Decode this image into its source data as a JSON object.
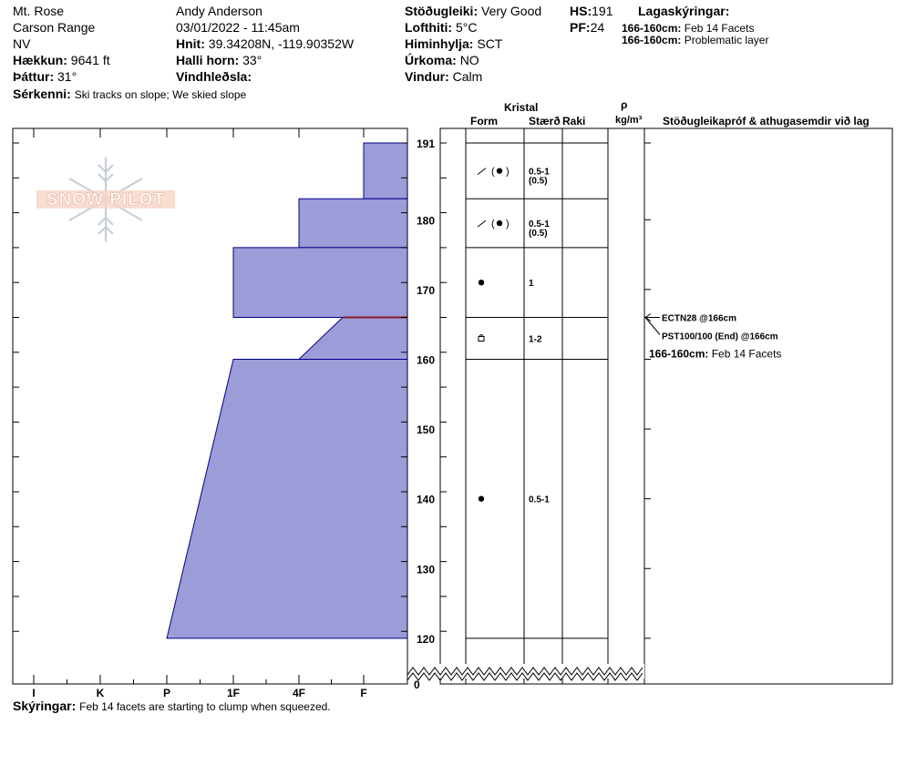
{
  "header": {
    "location": "Mt. Rose",
    "range": "Carson Range",
    "state": "NV",
    "elevation_label": "Hækkun:",
    "elevation": "9641 ft",
    "aspect_label": "Þáttur:",
    "aspect": "31°",
    "observer": "Andy Anderson",
    "datetime": "03/01/2022 - 11:45am",
    "coords_label": "Hnit:",
    "coords": "39.34208N, -119.90352W",
    "slope_label": "Halli horn:",
    "slope": "33°",
    "wind_loading_label": "Vindhleðsla:",
    "wind_loading": "",
    "stability_label": "Stöðugleiki:",
    "stability": "Very Good",
    "air_temp_label": "Lofthiti:",
    "air_temp": "5°C",
    "sky_label": "Himinhylja:",
    "sky": "SCT",
    "precip_label": "Úrkoma:",
    "precip": "NO",
    "wind_label": "Vindur:",
    "wind": "Calm",
    "hs_label": "HS:",
    "hs": "191",
    "pf_label": "PF:",
    "pf": "24",
    "features_label": "Sérkenni:",
    "features": "Ski tracks on slope; We skied slope",
    "layer_notes_label": "Lagaskýringar:",
    "layer_notes": [
      {
        "range": "166-160cm:",
        "text": "Feb 14 Facets"
      },
      {
        "range": "166-160cm:",
        "text": "Problematic layer"
      }
    ]
  },
  "columns": {
    "crystal": "Kristal",
    "form": "Form",
    "size": "Stærð",
    "moisture": "Raki",
    "rho": "ρ",
    "density_unit": "kg/m³",
    "tests": "Stöðugleikapróf & athugasemdir við lag"
  },
  "footer": {
    "notes_label": "Skýringar:",
    "notes": "Feb 14 facets are starting to clump when squeezed."
  },
  "colors": {
    "hardness_fill": "#9c9cd8",
    "hardness_stroke": "#00008b",
    "weak_layer": "#8b1a2a"
  },
  "chart_data": {
    "type": "snow-profile",
    "y_unit": "cm",
    "y_ticks": [
      191,
      180,
      170,
      160,
      150,
      140,
      130,
      120
    ],
    "y_break_label": "0",
    "hardness_scale": [
      "I",
      "K",
      "P",
      "1F",
      "4F",
      "F"
    ],
    "hardness_profile": [
      {
        "top": 191,
        "bottom": 183,
        "hardness": "F"
      },
      {
        "top": 183,
        "bottom": 176,
        "hardness": "4F-"
      },
      {
        "top": 176,
        "bottom": 166,
        "hardness": "1F-"
      },
      {
        "top": 166,
        "bottom": 160,
        "hardness_top": "F-",
        "hardness_bottom": "4F"
      },
      {
        "top": 160,
        "bottom": 120,
        "hardness_top": "1F-",
        "hardness_bottom": "P"
      }
    ],
    "weak_layer_depth": 166,
    "layers": [
      {
        "top": 191,
        "bottom": 183,
        "form": "decomposing / rounds",
        "size": "0.5-1",
        "size_note": "(0.5)"
      },
      {
        "top": 183,
        "bottom": 176,
        "form": "decomposing / rounds",
        "size": "0.5-1",
        "size_note": "(0.5)"
      },
      {
        "top": 176,
        "bottom": 166,
        "form": "rounds",
        "size": "1",
        "size_note": ""
      },
      {
        "top": 166,
        "bottom": 160,
        "form": "faceted rounds",
        "size": "1-2",
        "size_note": ""
      },
      {
        "top": 160,
        "bottom": 120,
        "form": "rounds",
        "size": "0.5-1",
        "size_note": ""
      }
    ],
    "tests": [
      {
        "label": "ECTN28 @166cm",
        "depth": 166
      },
      {
        "label": "PST100/100 (End) @166cm",
        "depth": 166
      }
    ],
    "layer_comment": {
      "range": "166-160cm:",
      "text": "Feb 14 Facets"
    }
  }
}
